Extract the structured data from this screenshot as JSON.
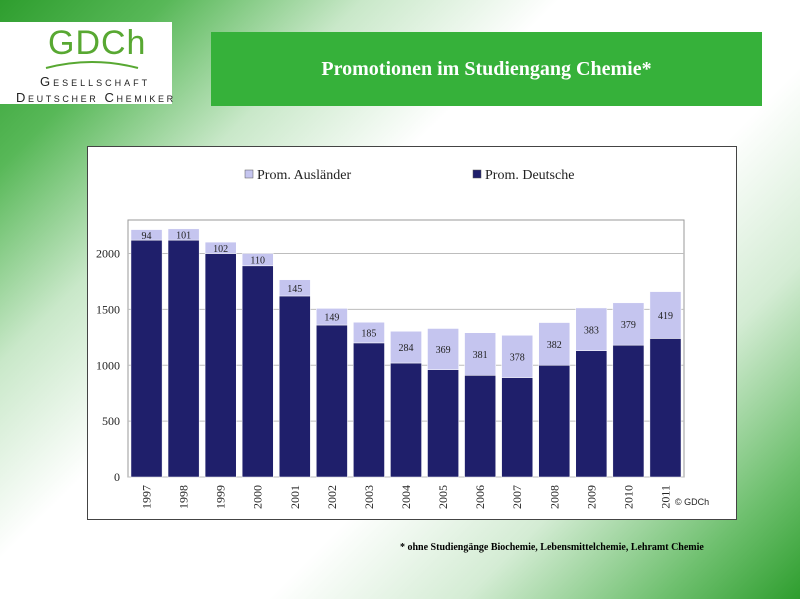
{
  "logo": {
    "mark": "GDCh",
    "line1": "Gesellschaft",
    "line2": "Deutscher Chemiker",
    "colors": {
      "mark": "#58a832"
    }
  },
  "title": "Promotionen im Studiengang Chemie*",
  "footnote": "* ohne Studiengänge Biochemie, Lebensmittelchemie, Lehramt Chemie",
  "chart_data": {
    "type": "bar",
    "stacked": true,
    "categories": [
      "1997",
      "1998",
      "1999",
      "2000",
      "2001",
      "2002",
      "2003",
      "2004",
      "2005",
      "2006",
      "2007",
      "2008",
      "2009",
      "2010",
      "2011"
    ],
    "series": [
      {
        "name": "Prom. Deutsche",
        "values": [
          2120,
          2120,
          2000,
          1890,
          1620,
          1360,
          1200,
          1020,
          960,
          910,
          890,
          1000,
          1130,
          1180,
          1240
        ],
        "color": "#1f1f6b"
      },
      {
        "name": "Prom. Ausländer",
        "values": [
          94,
          101,
          102,
          110,
          145,
          149,
          185,
          284,
          369,
          381,
          378,
          382,
          383,
          379,
          419
        ],
        "color": "#c5c5ef"
      }
    ],
    "data_labels_series": "Prom. Ausländer",
    "ylim": [
      0,
      2300
    ],
    "yticks": [
      0,
      500,
      1000,
      1500,
      2000
    ],
    "grid": true,
    "legend": "top",
    "copyright": "© GDCh"
  }
}
